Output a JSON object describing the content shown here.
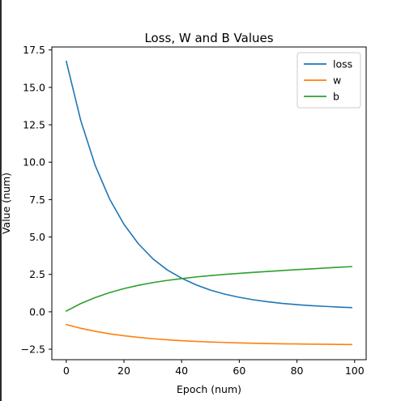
{
  "chart_data": {
    "type": "line",
    "title": "Loss, W and B Values",
    "xlabel": "Epoch (num)",
    "ylabel": "Value (num)",
    "xlim": [
      -5,
      104
    ],
    "ylim": [
      -3.2,
      17.7
    ],
    "xticks": [
      0,
      20,
      40,
      60,
      80,
      100
    ],
    "xtick_labels": [
      "0",
      "20",
      "40",
      "60",
      "80",
      "100"
    ],
    "yticks": [
      -2.5,
      0.0,
      2.5,
      5.0,
      7.5,
      10.0,
      12.5,
      15.0,
      17.5
    ],
    "ytick_labels": [
      "−2.5",
      "0.0",
      "2.5",
      "5.0",
      "7.5",
      "10.0",
      "12.5",
      "15.0",
      "17.5"
    ],
    "grid": false,
    "legend_position": "top-right",
    "x": [
      0,
      5,
      10,
      15,
      20,
      25,
      30,
      35,
      40,
      45,
      50,
      55,
      60,
      65,
      70,
      75,
      80,
      85,
      90,
      95,
      99
    ],
    "series": [
      {
        "name": "loss",
        "color": "#1f77b4",
        "values": [
          16.75,
          12.8,
          9.8,
          7.55,
          5.85,
          4.55,
          3.55,
          2.8,
          2.25,
          1.8,
          1.45,
          1.18,
          0.97,
          0.8,
          0.67,
          0.56,
          0.48,
          0.41,
          0.36,
          0.31,
          0.28
        ]
      },
      {
        "name": "w",
        "color": "#ff7f0e",
        "values": [
          -0.85,
          -1.1,
          -1.3,
          -1.47,
          -1.6,
          -1.71,
          -1.8,
          -1.87,
          -1.93,
          -1.98,
          -2.02,
          -2.05,
          -2.08,
          -2.1,
          -2.12,
          -2.14,
          -2.15,
          -2.16,
          -2.17,
          -2.18,
          -2.19
        ]
      },
      {
        "name": "b",
        "color": "#2ca02c",
        "values": [
          0.05,
          0.55,
          0.95,
          1.28,
          1.55,
          1.77,
          1.95,
          2.1,
          2.22,
          2.33,
          2.42,
          2.5,
          2.57,
          2.64,
          2.7,
          2.76,
          2.82,
          2.87,
          2.93,
          2.98,
          3.02
        ]
      }
    ]
  }
}
